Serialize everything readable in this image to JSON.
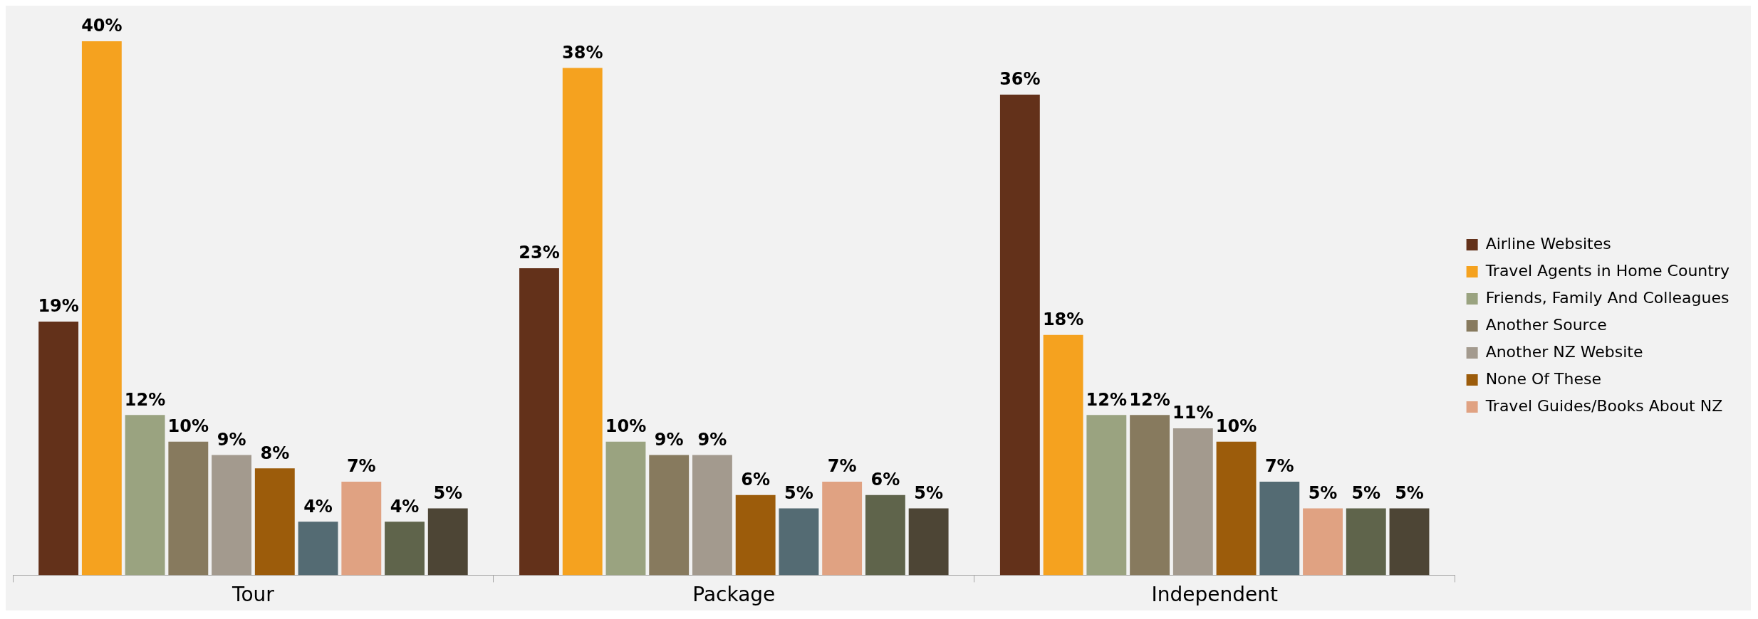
{
  "chart_data": {
    "type": "bar",
    "categories": [
      "Tour",
      "Package",
      "Independent"
    ],
    "legend": "right",
    "tick_labels": "x",
    "series": [
      {
        "name": "Airline Websites",
        "color": "#63311a",
        "values": [
          19,
          23,
          36
        ],
        "value_labels": [
          "19%",
          "23%",
          "36%"
        ]
      },
      {
        "name": "Travel Agents in Home Country",
        "color": "#f5a21f",
        "values": [
          40,
          38,
          18
        ],
        "value_labels": [
          "40%",
          "38%",
          "18%"
        ]
      },
      {
        "name": "Friends, Family And Colleagues",
        "color": "#9aa380",
        "values": [
          12,
          10,
          12
        ],
        "value_labels": [
          "12%",
          "10%",
          "12%"
        ]
      },
      {
        "name": "Another Source",
        "color": "#877a5e",
        "values": [
          10,
          9,
          12
        ],
        "value_labels": [
          "10%",
          "9%",
          "12%"
        ]
      },
      {
        "name": "Another NZ Website",
        "color": "#a39a8e",
        "values": [
          9,
          9,
          11
        ],
        "value_labels": [
          "9%",
          "9%",
          "11%"
        ]
      },
      {
        "name": "None Of These",
        "color": "#9c5c0b",
        "values": [
          8,
          6,
          10
        ],
        "value_labels": [
          "8%",
          "6%",
          "10%"
        ]
      },
      {
        "color": "#546b73",
        "values": [
          4,
          5,
          7
        ],
        "value_labels": [
          "4%",
          "5%",
          "7%"
        ]
      },
      {
        "name": "Travel Guides/Books About NZ",
        "color": "#e0a282",
        "values": [
          7,
          7,
          5
        ],
        "value_labels": [
          "7%",
          "7%",
          "5%"
        ]
      },
      {
        "color": "#5f644b",
        "values": [
          4,
          6,
          5
        ],
        "value_labels": [
          "4%",
          "6%",
          "5%"
        ]
      },
      {
        "color": "#4d4535",
        "values": [
          5,
          5,
          5
        ],
        "value_labels": [
          "5%",
          "5%",
          "5%"
        ]
      }
    ]
  }
}
